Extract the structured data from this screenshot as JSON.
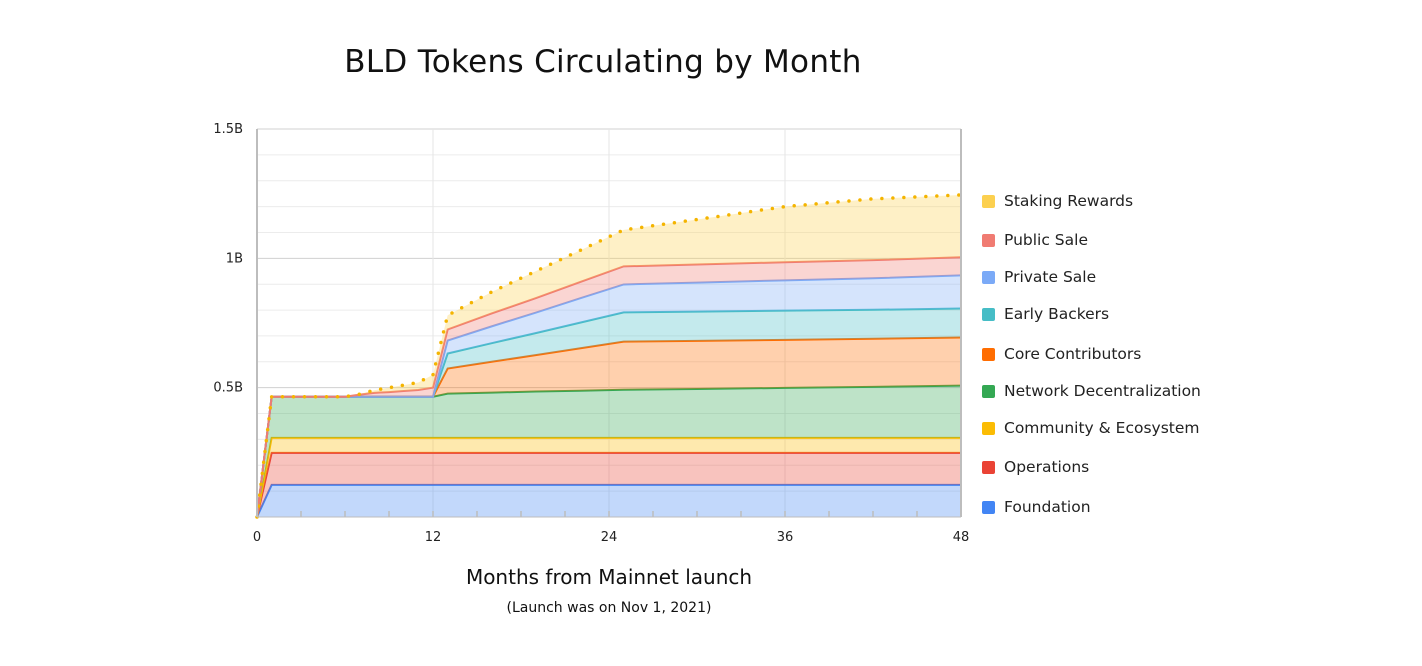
{
  "chart_data": {
    "type": "area",
    "stacked": true,
    "title": "BLD Tokens Circulating by Month",
    "xlabel": "Months from Mainnet launch",
    "xlabel_note": "(Launch was on Nov 1, 2021)",
    "ylabel": "",
    "xlim": [
      0,
      48
    ],
    "ylim": [
      0,
      1.5
    ],
    "x_ticks": [
      "0",
      "12",
      "24",
      "36",
      "48"
    ],
    "y_ticks": [
      "0.5B",
      "1B",
      "1.5B"
    ],
    "y_tick_values": [
      0.5,
      1,
      1.5
    ],
    "grid": true,
    "legend_position": "right",
    "units": "billion BLD",
    "x": [
      0,
      1,
      6,
      7,
      8,
      9,
      10,
      11,
      12,
      13,
      16,
      19,
      22,
      25,
      30,
      36,
      42,
      48
    ],
    "series": [
      {
        "name": "Foundation",
        "color": "#4285F4",
        "values": [
          0,
          0.124,
          0.124,
          0.124,
          0.124,
          0.124,
          0.124,
          0.124,
          0.124,
          0.124,
          0.124,
          0.124,
          0.124,
          0.124,
          0.124,
          0.124,
          0.124,
          0.124
        ]
      },
      {
        "name": "Operations",
        "color": "#EA4335",
        "values": [
          0,
          0.124,
          0.124,
          0.124,
          0.124,
          0.124,
          0.124,
          0.124,
          0.124,
          0.124,
          0.124,
          0.124,
          0.124,
          0.124,
          0.124,
          0.124,
          0.124,
          0.124
        ]
      },
      {
        "name": "Community & Ecosystem",
        "color": "#FBBC04",
        "values": [
          0,
          0.058,
          0.058,
          0.058,
          0.058,
          0.058,
          0.058,
          0.058,
          0.058,
          0.058,
          0.058,
          0.058,
          0.058,
          0.058,
          0.058,
          0.058,
          0.058,
          0.058
        ]
      },
      {
        "name": "Network Decentralization",
        "color": "#34A853",
        "values": [
          0,
          0.159,
          0.159,
          0.159,
          0.159,
          0.159,
          0.159,
          0.159,
          0.159,
          0.171,
          0.175,
          0.179,
          0.182,
          0.186,
          0.189,
          0.193,
          0.197,
          0.202
        ]
      },
      {
        "name": "Core Contributors",
        "color": "#FF6D01",
        "values": [
          0,
          0,
          0,
          0,
          0,
          0,
          0,
          0,
          0,
          0.097,
          0.119,
          0.141,
          0.164,
          0.186,
          0.186,
          0.186,
          0.186,
          0.186
        ]
      },
      {
        "name": "Early Backers",
        "color": "#46BDC6",
        "values": [
          0,
          0,
          0,
          0,
          0,
          0,
          0,
          0,
          0,
          0.058,
          0.072,
          0.085,
          0.099,
          0.113,
          0.113,
          0.113,
          0.112,
          0.112
        ]
      },
      {
        "name": "Private Sale",
        "color": "#7BAAF7",
        "values": [
          0,
          0,
          0,
          0,
          0,
          0,
          0,
          0,
          0,
          0.05,
          0.065,
          0.079,
          0.094,
          0.108,
          0.112,
          0.117,
          0.122,
          0.128
        ]
      },
      {
        "name": "Public Sale",
        "color": "#F07B72",
        "values": [
          0,
          0,
          0,
          0.008,
          0.015,
          0.018,
          0.022,
          0.026,
          0.035,
          0.043,
          0.05,
          0.056,
          0.063,
          0.07,
          0.07,
          0.07,
          0.07,
          0.07
        ]
      },
      {
        "name": "Staking Rewards",
        "color": "#FCD04F",
        "dotted": true,
        "values": [
          0,
          0,
          0,
          0.002,
          0.01,
          0.017,
          0.023,
          0.029,
          0.05,
          0.055,
          0.083,
          0.104,
          0.122,
          0.141,
          0.174,
          0.215,
          0.237,
          0.241
        ]
      }
    ]
  }
}
